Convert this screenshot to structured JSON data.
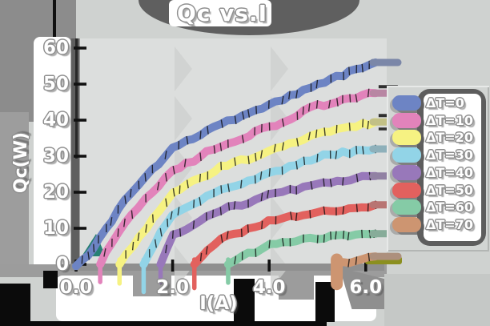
{
  "title": "Qc vs.I",
  "axes": {
    "x_label": "I(A)",
    "y_label": "Qc(W)"
  },
  "chart_data": {
    "type": "line",
    "style": "xkcd-hand-drawn-thick-lines",
    "title": "Qc vs.I",
    "xlabel": "I(A)",
    "ylabel": "Qc(W)",
    "xlim": [
      0,
      6.6
    ],
    "ylim": [
      0,
      60
    ],
    "grid": false,
    "legend_position": "right",
    "x_ticks": [
      {
        "value": 0,
        "label": "0.0"
      },
      {
        "value": 2,
        "label": "2.0"
      },
      {
        "value": 4,
        "label": "4.0"
      },
      {
        "value": 6,
        "label": "6.0"
      }
    ],
    "y_ticks": [
      {
        "value": 0,
        "label": "0"
      },
      {
        "value": 10,
        "label": "10"
      },
      {
        "value": 20,
        "label": "20"
      },
      {
        "value": 30,
        "label": "30"
      },
      {
        "value": 40,
        "label": "40"
      },
      {
        "value": 50,
        "label": "50"
      },
      {
        "value": 60,
        "label": "60"
      }
    ],
    "series": [
      {
        "name": "ΔT=0",
        "color": "#6d84c4",
        "points": [
          [
            0,
            -0.5
          ],
          [
            0.35,
            4
          ],
          [
            1,
            18
          ],
          [
            2,
            32
          ],
          [
            3,
            39
          ],
          [
            4,
            44
          ],
          [
            5,
            50
          ],
          [
            6.2,
            56
          ]
        ]
      },
      {
        "name": "ΔT=10",
        "color": "#e283bb",
        "points": [
          [
            0.5,
            0
          ],
          [
            1,
            12
          ],
          [
            2,
            26
          ],
          [
            3,
            33
          ],
          [
            4,
            38
          ],
          [
            5,
            44
          ],
          [
            6.2,
            47.5
          ]
        ]
      },
      {
        "name": "ΔT=20",
        "color": "#f6f282",
        "points": [
          [
            0.9,
            0
          ],
          [
            2,
            20
          ],
          [
            3,
            27
          ],
          [
            4,
            31
          ],
          [
            5,
            36
          ],
          [
            6.2,
            39.5
          ]
        ]
      },
      {
        "name": "ΔT=30",
        "color": "#92d4e7",
        "points": [
          [
            1.4,
            0
          ],
          [
            2,
            14
          ],
          [
            3,
            20.5
          ],
          [
            4,
            25
          ],
          [
            5,
            30
          ],
          [
            6.2,
            32
          ]
        ]
      },
      {
        "name": "ΔT=40",
        "color": "#9878ba",
        "points": [
          [
            1.75,
            0
          ],
          [
            2,
            8
          ],
          [
            3,
            15
          ],
          [
            4,
            19
          ],
          [
            5,
            22.5
          ],
          [
            6.2,
            24.5
          ]
        ]
      },
      {
        "name": "ΔT=50",
        "color": "#e2615e",
        "points": [
          [
            2.45,
            0
          ],
          [
            3,
            7
          ],
          [
            4,
            12
          ],
          [
            5,
            14.5
          ],
          [
            6.2,
            16.5
          ]
        ]
      },
      {
        "name": "ΔT=60",
        "color": "#85cba6",
        "points": [
          [
            3.15,
            0
          ],
          [
            4,
            5.5
          ],
          [
            5,
            7.5
          ],
          [
            6.2,
            8.5
          ]
        ]
      },
      {
        "name": "ΔT=70",
        "color": "#cd9571",
        "points": [
          [
            5.4,
            0
          ],
          [
            5.8,
            1.2
          ],
          [
            6.2,
            2.2
          ]
        ]
      }
    ]
  },
  "legend": {
    "entries": [
      {
        "label": "ΔT=0",
        "color": "#6d84c4"
      },
      {
        "label": "ΔT=10",
        "color": "#e283bb"
      },
      {
        "label": "ΔT=20",
        "color": "#f6f282"
      },
      {
        "label": "ΔT=30",
        "color": "#92d4e7"
      },
      {
        "label": "ΔT=40",
        "color": "#9878ba"
      },
      {
        "label": "ΔT=50",
        "color": "#e2615e"
      },
      {
        "label": "ΔT=60",
        "color": "#85cba6"
      },
      {
        "label": "ΔT=70",
        "color": "#cd9571"
      }
    ]
  },
  "decor": {
    "olive_bar_color": "#8b8f1f",
    "teal_wedge_color": "#1d7a6e",
    "plot_bg": "#dcdedd",
    "figure_bg": "#cfd2d0",
    "shadow_dark": "#5f5f5f",
    "shadow_black": "#0b0b0b"
  }
}
